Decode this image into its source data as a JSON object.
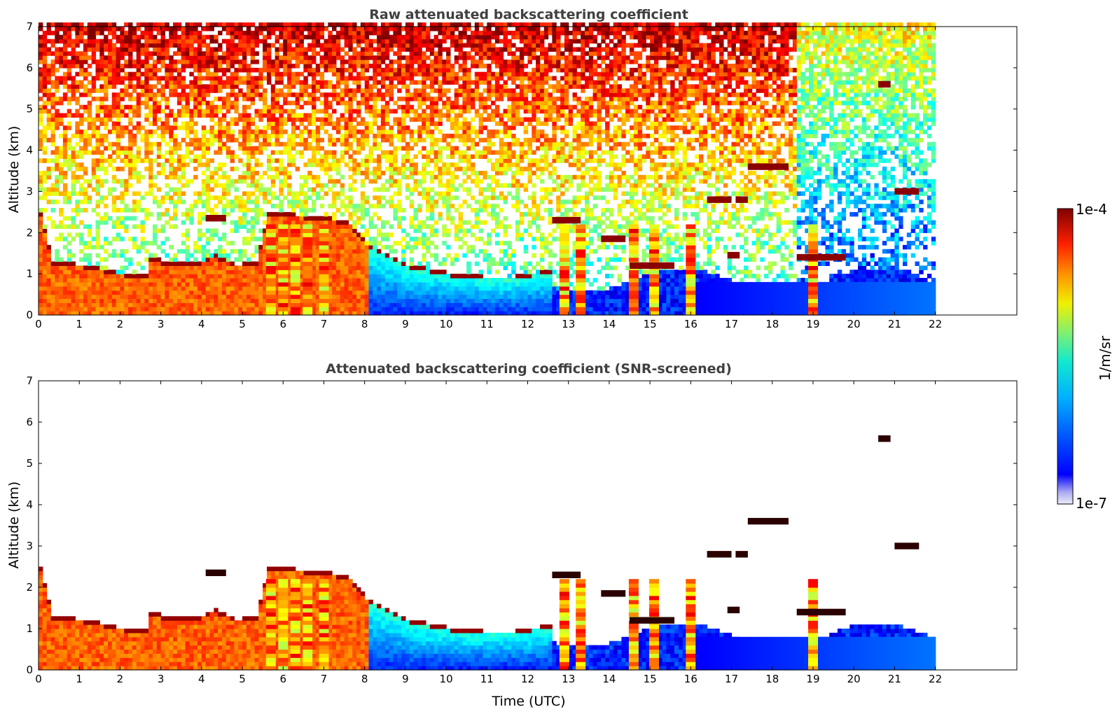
{
  "chart_data": [
    {
      "type": "heatmap",
      "title": "Raw attenuated backscattering coefficient",
      "xlabel": "",
      "ylabel": "Altitude (km)",
      "xlim": [
        0,
        24
      ],
      "ylim": [
        0,
        7
      ],
      "xticks": [
        "0",
        "1",
        "2",
        "3",
        "4",
        "5",
        "6",
        "7",
        "8",
        "9",
        "10",
        "11",
        "12",
        "13",
        "14",
        "15",
        "16",
        "17",
        "18",
        "19",
        "20",
        "21",
        "22"
      ],
      "yticks": [
        "0",
        "1",
        "2",
        "3",
        "4",
        "5",
        "6",
        "7"
      ],
      "data_end_hour": 22,
      "screened": false,
      "colormap": "jet",
      "features": {
        "pbl_top_km": [
          [
            0,
            2.4
          ],
          [
            0.3,
            1.2
          ],
          [
            1,
            1.1
          ],
          [
            2,
            0.9
          ],
          [
            2.6,
            0.85
          ],
          [
            2.7,
            1.3
          ],
          [
            3,
            1.2
          ],
          [
            4,
            1.2
          ],
          [
            4.3,
            1.35
          ],
          [
            4.8,
            1.1
          ],
          [
            5.3,
            1.2
          ],
          [
            5.6,
            2.4
          ],
          [
            6,
            2.35
          ],
          [
            6.5,
            2.3
          ],
          [
            7,
            2.25
          ],
          [
            7.6,
            2.1
          ],
          [
            8,
            1.6
          ],
          [
            8.5,
            1.35
          ],
          [
            9,
            1.1
          ],
          [
            10,
            0.9
          ],
          [
            11,
            0.8
          ],
          [
            11.5,
            0.8
          ],
          [
            12,
            0.9
          ],
          [
            12.5,
            0.95
          ]
        ],
        "cloud_segments": [
          {
            "x": [
              17.4,
              18.4
            ],
            "y": 3.6
          },
          {
            "x": [
              16.4,
              17.0
            ],
            "y": 2.8
          },
          {
            "x": [
              17.1,
              17.4
            ],
            "y": 2.8
          },
          {
            "x": [
              14.5,
              15.6
            ],
            "y": 1.2
          },
          {
            "x": [
              18.6,
              19.8
            ],
            "y": 1.4
          },
          {
            "x": [
              12.6,
              13.3
            ],
            "y": 2.3
          },
          {
            "x": [
              13.8,
              14.4
            ],
            "y": 1.85
          },
          {
            "x": [
              16.9,
              17.2
            ],
            "y": 1.45
          },
          {
            "x": [
              4.1,
              4.6
            ],
            "y": 2.35
          },
          {
            "x": [
              20.6,
              20.9
            ],
            "y": 5.6
          },
          {
            "x": [
              21.0,
              21.6
            ],
            "y": 3.0
          }
        ],
        "rain_columns_hour": [
          5.7,
          6.0,
          6.3,
          6.6,
          7.0,
          12.9,
          13.3,
          14.6,
          15.1,
          16.0,
          19.0
        ]
      }
    },
    {
      "type": "heatmap",
      "title": "Attenuated backscattering coefficient (SNR-screened)",
      "xlabel": "Time (UTC)",
      "ylabel": "Altitude (km)",
      "xlim": [
        0,
        24
      ],
      "ylim": [
        0,
        7
      ],
      "xticks": [
        "0",
        "1",
        "2",
        "3",
        "4",
        "5",
        "6",
        "7",
        "8",
        "9",
        "10",
        "11",
        "12",
        "13",
        "14",
        "15",
        "16",
        "17",
        "18",
        "19",
        "20",
        "21",
        "22"
      ],
      "yticks": [
        "0",
        "1",
        "2",
        "3",
        "4",
        "5",
        "6",
        "7"
      ],
      "data_end_hour": 22,
      "screened": true,
      "colormap": "jet"
    }
  ],
  "colorbar": {
    "max_label": "1e-4",
    "min_label": "1e-7",
    "units": "1/m/sr",
    "colors": [
      "#e6e6fa",
      "#c8c8f5",
      "#a0a0f0",
      "#7878ee",
      "#0000ff",
      "#0030ff",
      "#0070ff",
      "#00b0ff",
      "#00e0f0",
      "#30f0c0",
      "#70f080",
      "#b0f040",
      "#e0f020",
      "#ffd000",
      "#ff9000",
      "#ff5000",
      "#f02000",
      "#c00000",
      "#800000"
    ]
  }
}
